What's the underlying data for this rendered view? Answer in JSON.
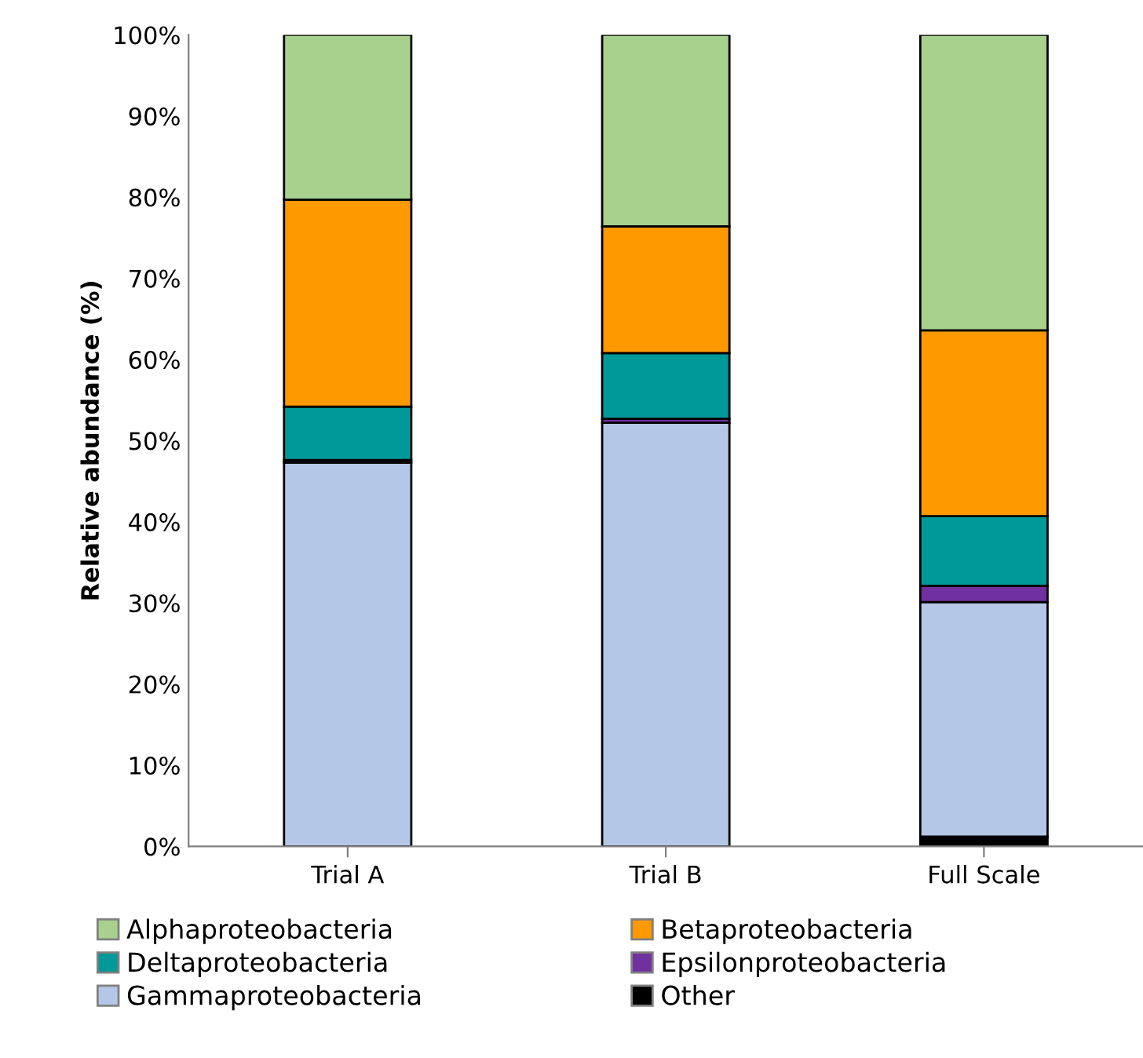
{
  "chart_data": {
    "type": "bar",
    "stacked": true,
    "ylabel": "Relative abundance (%)",
    "categories": [
      "Trial A",
      "Trial B",
      "Full Scale"
    ],
    "series": [
      {
        "name": "Other",
        "color": "#000000",
        "values": [
          0,
          0,
          1.2
        ]
      },
      {
        "name": "Gammaproteobacteria",
        "color": "#b4c7e7",
        "values": [
          47.3,
          52.2,
          28.9
        ]
      },
      {
        "name": "Epsilonproteobacteria",
        "color": "#7030a0",
        "values": [
          0.3,
          0.5,
          2.0
        ]
      },
      {
        "name": "Deltaproteobacteria",
        "color": "#009999",
        "values": [
          6.6,
          8.1,
          8.6
        ]
      },
      {
        "name": "Betaproteobacteria",
        "color": "#ff9900",
        "values": [
          25.5,
          15.6,
          22.9
        ]
      },
      {
        "name": "Alphaproteobacteria",
        "color": "#a9d18e",
        "values": [
          20.3,
          23.6,
          36.4
        ]
      }
    ],
    "ylim": [
      0,
      100
    ],
    "yticks": [
      {
        "value": 0,
        "label": "0%"
      },
      {
        "value": 10,
        "label": "10%"
      },
      {
        "value": 20,
        "label": "20%"
      },
      {
        "value": 30,
        "label": "30%"
      },
      {
        "value": 40,
        "label": "40%"
      },
      {
        "value": 50,
        "label": "50%"
      },
      {
        "value": 60,
        "label": "60%"
      },
      {
        "value": 70,
        "label": "70%"
      },
      {
        "value": 80,
        "label": "80%"
      },
      {
        "value": 90,
        "label": "90%"
      },
      {
        "value": 100,
        "label": "100%"
      }
    ],
    "grid": false,
    "legend": "bottom"
  }
}
